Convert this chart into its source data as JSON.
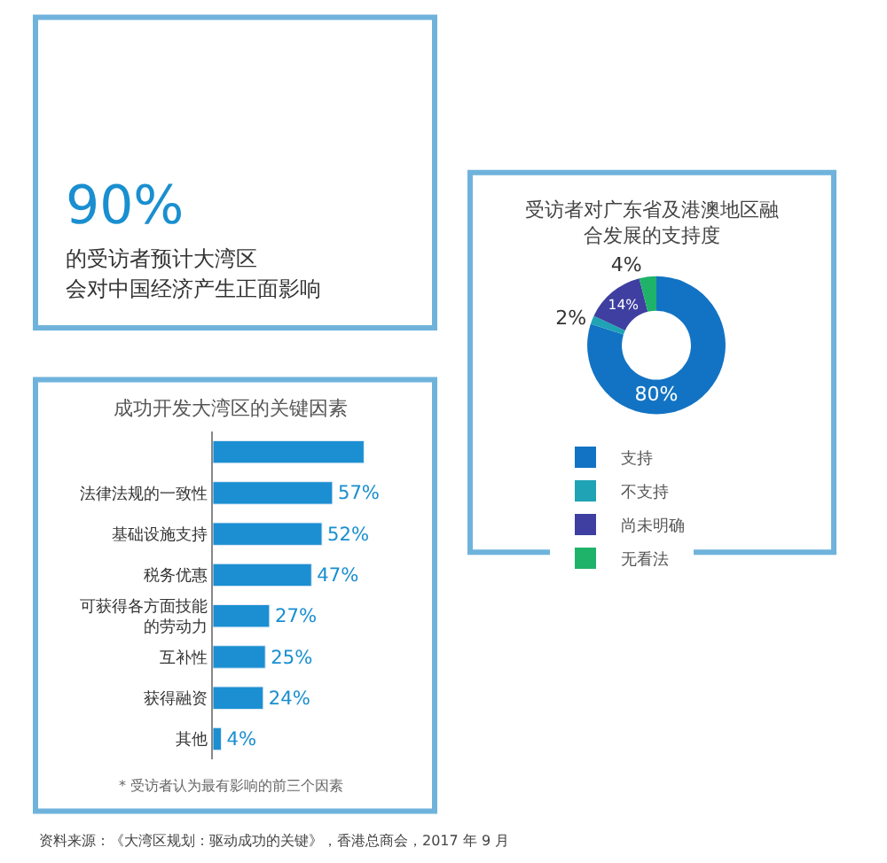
{
  "chart_data": [
    {
      "type": "other",
      "annotations": [
        "90%",
        "的受访者预计大湾区",
        "会对中国经济产生正面影响"
      ]
    },
    {
      "type": "donut",
      "title": "受访者对广东省及港澳地区融合发展的支持度",
      "categories": [
        "支持",
        "不支持",
        "尚未明确",
        "无看法"
      ],
      "values": [
        80,
        2,
        14,
        4
      ],
      "colors": [
        "#1273c4",
        "#1fa3b5",
        "#3e3fa0",
        "#1fb36a"
      ],
      "value_labels": [
        "80%",
        "2%",
        "14%",
        "4%"
      ],
      "legend": "bottom"
    },
    {
      "type": "bar",
      "orientation": "horizontal",
      "title": "成功开发大湾区的关键因素",
      "categories": [
        null,
        "法律法规的一致性",
        "基础设施支持",
        "税务优惠",
        "可获得各方面技能的劳动力",
        "互补性",
        "获得融资",
        "其他"
      ],
      "values": [
        72,
        57,
        52,
        47,
        27,
        25,
        24,
        4
      ],
      "color": "#1b8fd2",
      "value_labels": [
        null,
        "57%",
        "52%",
        "47%",
        "27%",
        "25%",
        "24%",
        "4%"
      ],
      "annotations": [
        "* 受访者认为最有影响的前三个因素",
        "资料来源：《大湾区规划：驱动成功的关键》，香港总商会，2017 年 9 月"
      ]
    }
  ]
}
